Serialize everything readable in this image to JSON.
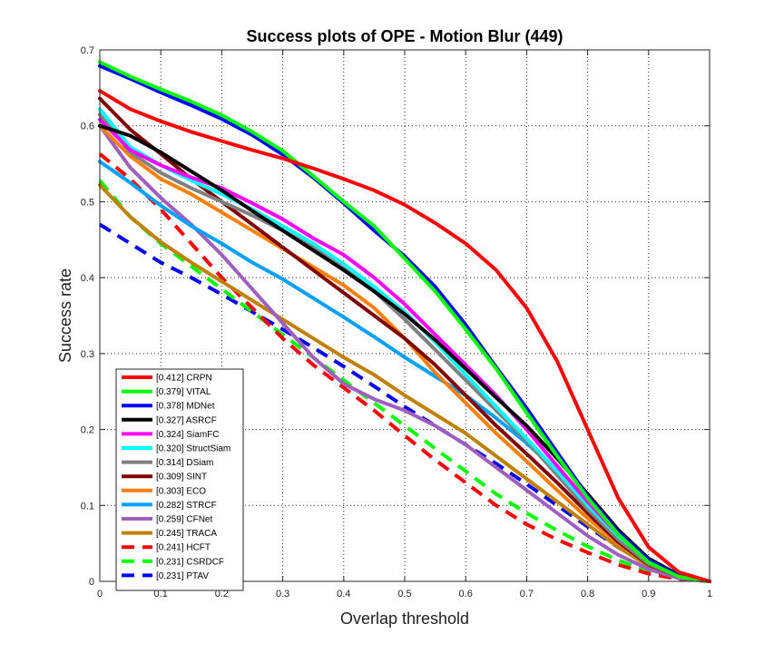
{
  "chart_data": {
    "type": "line",
    "title": "Success plots of OPE - Motion Blur (449)",
    "xlabel": "Overlap threshold",
    "ylabel": "Success rate",
    "xlim": [
      0,
      1
    ],
    "ylim": [
      0,
      0.7
    ],
    "grid": true,
    "legend_position": "bottom-left",
    "xticks": [
      "0",
      "0.1",
      "0.2",
      "0.3",
      "0.4",
      "0.5",
      "0.6",
      "0.7",
      "0.8",
      "0.9",
      "1"
    ],
    "yticks": [
      "0",
      "0.1",
      "0.2",
      "0.3",
      "0.4",
      "0.5",
      "0.6",
      "0.7"
    ],
    "x": [
      0,
      0.05,
      0.1,
      0.15,
      0.2,
      0.25,
      0.3,
      0.35,
      0.4,
      0.45,
      0.5,
      0.55,
      0.6,
      0.65,
      0.7,
      0.75,
      0.8,
      0.85,
      0.9,
      0.95,
      1
    ],
    "series": [
      {
        "name": "[0.412] CRPN",
        "color": "#ff0000",
        "dashed": false,
        "values": [
          0.646,
          0.622,
          0.606,
          0.592,
          0.58,
          0.568,
          0.557,
          0.544,
          0.53,
          0.515,
          0.496,
          0.472,
          0.445,
          0.41,
          0.36,
          0.29,
          0.2,
          0.11,
          0.045,
          0.012,
          0
        ]
      },
      {
        "name": "[0.379] VITAL",
        "color": "#00ff00",
        "dashed": false,
        "values": [
          0.684,
          0.665,
          0.648,
          0.632,
          0.614,
          0.592,
          0.567,
          0.534,
          0.5,
          0.468,
          0.425,
          0.382,
          0.332,
          0.28,
          0.222,
          0.165,
          0.11,
          0.062,
          0.025,
          0.006,
          0
        ]
      },
      {
        "name": "[0.378] MDNet",
        "color": "#0000ff",
        "dashed": false,
        "values": [
          0.679,
          0.662,
          0.644,
          0.627,
          0.609,
          0.588,
          0.562,
          0.532,
          0.498,
          0.462,
          0.428,
          0.388,
          0.338,
          0.282,
          0.228,
          0.17,
          0.112,
          0.065,
          0.028,
          0.007,
          0
        ]
      },
      {
        "name": "[0.327] ASRCF",
        "color": "#000000",
        "dashed": false,
        "values": [
          0.6,
          0.587,
          0.565,
          0.54,
          0.515,
          0.488,
          0.462,
          0.436,
          0.41,
          0.382,
          0.352,
          0.318,
          0.28,
          0.242,
          0.205,
          0.162,
          0.115,
          0.068,
          0.03,
          0.008,
          0
        ]
      },
      {
        "name": "[0.324] SiamFC",
        "color": "#ff00ff",
        "dashed": false,
        "values": [
          0.608,
          0.568,
          0.548,
          0.532,
          0.518,
          0.498,
          0.477,
          0.452,
          0.43,
          0.4,
          0.365,
          0.325,
          0.285,
          0.245,
          0.2,
          0.152,
          0.105,
          0.062,
          0.027,
          0.007,
          0
        ]
      },
      {
        "name": "[0.320] StructSiam",
        "color": "#00ffff",
        "dashed": false,
        "values": [
          0.622,
          0.572,
          0.548,
          0.528,
          0.51,
          0.49,
          0.468,
          0.445,
          0.418,
          0.388,
          0.355,
          0.315,
          0.272,
          0.23,
          0.188,
          0.145,
          0.1,
          0.06,
          0.027,
          0.007,
          0
        ]
      },
      {
        "name": "[0.314] DSiam",
        "color": "#808080",
        "dashed": false,
        "values": [
          0.615,
          0.565,
          0.538,
          0.518,
          0.5,
          0.482,
          0.462,
          0.44,
          0.412,
          0.382,
          0.345,
          0.305,
          0.265,
          0.225,
          0.185,
          0.14,
          0.095,
          0.055,
          0.023,
          0.006,
          0
        ]
      },
      {
        "name": "[0.309] SINT",
        "color": "#800000",
        "dashed": false,
        "values": [
          0.636,
          0.595,
          0.563,
          0.53,
          0.5,
          0.47,
          0.44,
          0.41,
          0.38,
          0.35,
          0.32,
          0.285,
          0.245,
          0.205,
          0.168,
          0.13,
          0.09,
          0.052,
          0.022,
          0.006,
          0
        ]
      },
      {
        "name": "[0.303] ECO",
        "color": "#ff8000",
        "dashed": false,
        "values": [
          0.6,
          0.56,
          0.53,
          0.51,
          0.486,
          0.462,
          0.438,
          0.414,
          0.39,
          0.36,
          0.32,
          0.275,
          0.235,
          0.195,
          0.158,
          0.12,
          0.083,
          0.05,
          0.022,
          0.006,
          0
        ]
      },
      {
        "name": "[0.282] STRCF",
        "color": "#00a0ff",
        "dashed": false,
        "values": [
          0.553,
          0.525,
          0.495,
          0.468,
          0.445,
          0.42,
          0.398,
          0.373,
          0.348,
          0.322,
          0.295,
          0.27,
          0.245,
          0.215,
          0.182,
          0.145,
          0.105,
          0.065,
          0.03,
          0.008,
          0
        ]
      },
      {
        "name": "[0.259] CFNet",
        "color": "#9f5fbf",
        "dashed": false,
        "values": [
          0.6,
          0.545,
          0.505,
          0.47,
          0.43,
          0.385,
          0.34,
          0.295,
          0.26,
          0.24,
          0.225,
          0.205,
          0.18,
          0.15,
          0.12,
          0.09,
          0.06,
          0.035,
          0.016,
          0.004,
          0
        ]
      },
      {
        "name": "[0.245] TRACA",
        "color": "#c08000",
        "dashed": false,
        "values": [
          0.522,
          0.48,
          0.447,
          0.42,
          0.395,
          0.37,
          0.345,
          0.32,
          0.295,
          0.272,
          0.245,
          0.22,
          0.195,
          0.165,
          0.135,
          0.105,
          0.075,
          0.045,
          0.02,
          0.005,
          0
        ]
      },
      {
        "name": "[0.241] HCFT",
        "color": "#ff0000",
        "dashed": true,
        "values": [
          0.563,
          0.53,
          0.49,
          0.445,
          0.4,
          0.36,
          0.32,
          0.285,
          0.255,
          0.225,
          0.192,
          0.16,
          0.13,
          0.1,
          0.075,
          0.055,
          0.038,
          0.022,
          0.01,
          0.003,
          0
        ]
      },
      {
        "name": "[0.231] CSRDCF",
        "color": "#00ff00",
        "dashed": true,
        "values": [
          0.528,
          0.48,
          0.445,
          0.415,
          0.385,
          0.355,
          0.325,
          0.295,
          0.265,
          0.235,
          0.205,
          0.175,
          0.145,
          0.115,
          0.09,
          0.067,
          0.046,
          0.028,
          0.013,
          0.004,
          0
        ]
      },
      {
        "name": "[0.231] PTAV",
        "color": "#0000ff",
        "dashed": true,
        "values": [
          0.47,
          0.445,
          0.42,
          0.4,
          0.378,
          0.355,
          0.332,
          0.308,
          0.283,
          0.257,
          0.23,
          0.205,
          0.18,
          0.155,
          0.128,
          0.1,
          0.072,
          0.045,
          0.022,
          0.006,
          0
        ]
      }
    ]
  }
}
